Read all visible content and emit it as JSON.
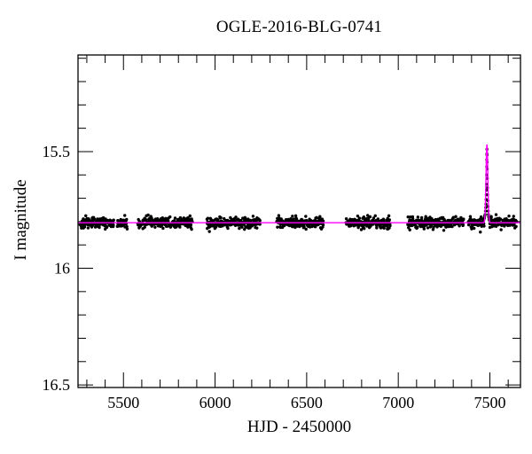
{
  "chart_data": {
    "type": "scatter",
    "title": "OGLE-2016-BLG-0741",
    "xlabel": "HJD - 2450000",
    "ylabel": "I magnitude",
    "x_axis": {
      "range": [
        5252,
        7667
      ],
      "major_ticks": [
        5500,
        6000,
        6500,
        7000,
        7500
      ],
      "major_tick_labels": [
        "5500",
        "6000",
        "6500",
        "7000",
        "7500"
      ],
      "minor_tick_step": 100,
      "minor_tick_start": 5300,
      "minor_tick_end": 7600
    },
    "y_axis": {
      "range": [
        15.086,
        16.511
      ],
      "inverted": true,
      "major_ticks": [
        15.5,
        16.0,
        16.5
      ],
      "major_tick_labels": [
        "15.5",
        "16",
        "16.5"
      ],
      "minor_tick_step": 0.1,
      "minor_tick_start": 15.1,
      "minor_tick_end": 16.5
    },
    "style": {
      "background_color": "#ffffff",
      "frame_color": "#000000",
      "point_color": "#000000",
      "model_color": "#ff00ff",
      "point_radius": 1.7,
      "major_tick_len": 17,
      "minor_tick_len": 9
    },
    "baseline_mag": 15.805,
    "scatter_sigma_mag": 0.011,
    "seasons": [
      {
        "start": 5262,
        "end": 5448,
        "n": 130
      },
      {
        "start": 5466,
        "end": 5520,
        "n": 42
      },
      {
        "start": 5578,
        "end": 5876,
        "n": 205
      },
      {
        "start": 5954,
        "end": 6246,
        "n": 205
      },
      {
        "start": 6336,
        "end": 6592,
        "n": 180
      },
      {
        "start": 6714,
        "end": 6956,
        "n": 170
      },
      {
        "start": 7052,
        "end": 7358,
        "n": 210
      },
      {
        "start": 7382,
        "end": 7648,
        "n": 185
      }
    ],
    "event": {
      "t0": 7484,
      "peak_mag": 15.49,
      "model_peak_mag": 15.47,
      "model_sigma_days": 5.0,
      "skip_window": [
        7469,
        7499
      ],
      "points": [
        [
          7470.5,
          15.785
        ],
        [
          7472.0,
          15.775
        ],
        [
          7474.0,
          15.77
        ],
        [
          7476.0,
          15.755
        ],
        [
          7477.5,
          15.74
        ],
        [
          7478.5,
          15.725
        ],
        [
          7479.5,
          15.705
        ],
        [
          7480.5,
          15.685
        ],
        [
          7481.2,
          15.665
        ],
        [
          7481.9,
          15.64
        ],
        [
          7482.5,
          15.6
        ],
        [
          7483.0,
          15.565
        ],
        [
          7483.4,
          15.535
        ],
        [
          7483.8,
          15.51
        ],
        [
          7484.1,
          15.49
        ],
        [
          7484.5,
          15.515
        ],
        [
          7484.9,
          15.545
        ],
        [
          7485.4,
          15.575
        ],
        [
          7486.0,
          15.615
        ],
        [
          7486.8,
          15.655
        ],
        [
          7487.6,
          15.685
        ],
        [
          7488.6,
          15.71
        ],
        [
          7489.8,
          15.735
        ],
        [
          7491.0,
          15.755
        ],
        [
          7492.5,
          15.77
        ],
        [
          7494.0,
          15.78
        ],
        [
          7496.0,
          15.79
        ],
        [
          7498.0,
          15.795
        ]
      ]
    }
  }
}
